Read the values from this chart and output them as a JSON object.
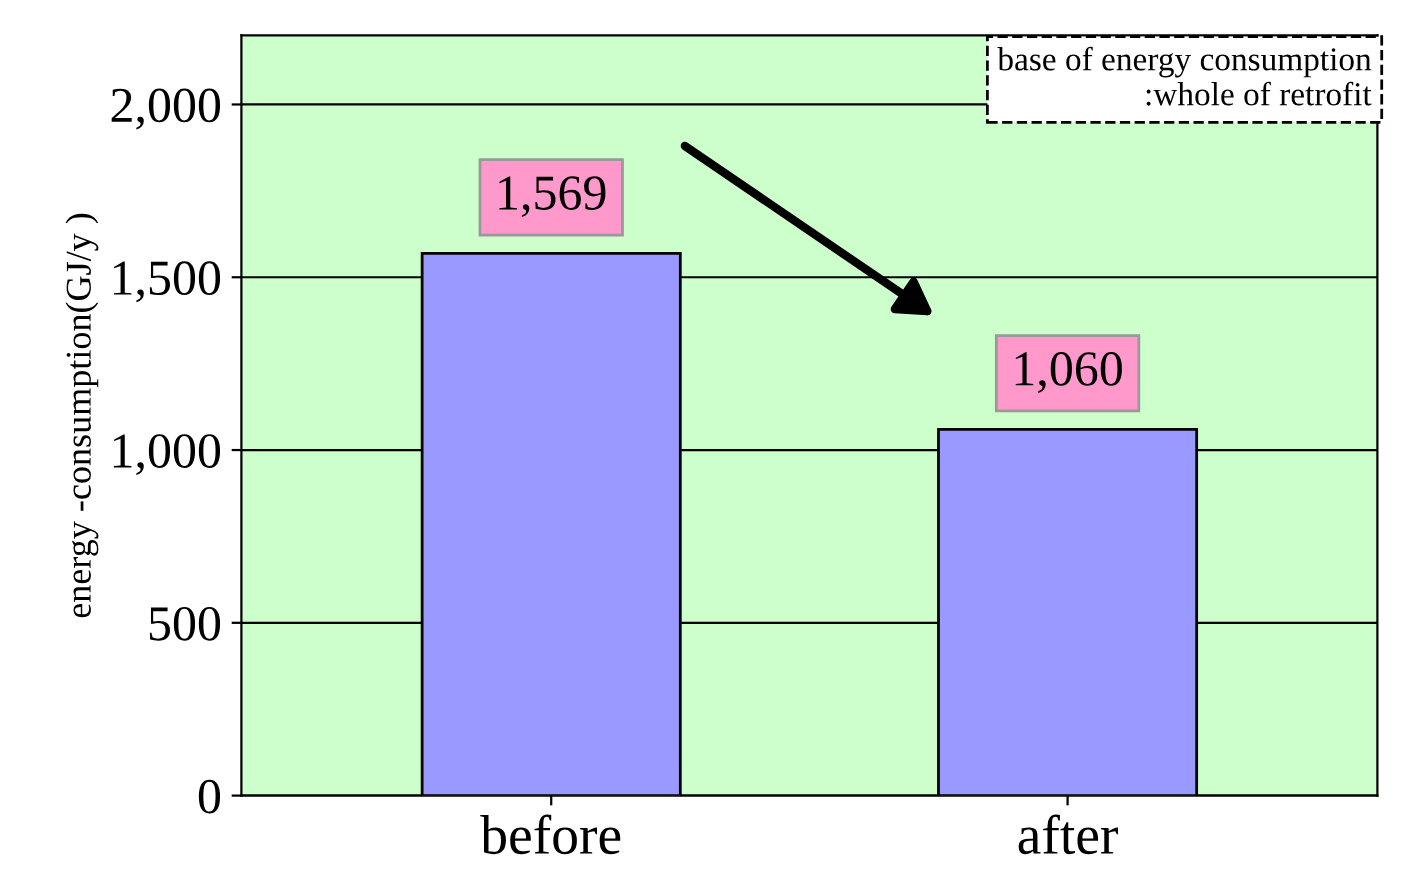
{
  "chart_data": {
    "type": "bar",
    "ylabel": "energy -consumption(GJ/y )",
    "categories": [
      "before",
      "after"
    ],
    "values": [
      1569,
      1060
    ],
    "color": "#9999ff",
    "ylim": [
      0,
      2200
    ],
    "yticks": [
      0,
      500,
      {
        "value": 1000,
        "label": "1,000"
      },
      {
        "value": 1500,
        "label": "1,500"
      },
      {
        "value": 2000,
        "label": "2,000"
      }
    ],
    "grid": "y",
    "value_labels": [
      "1,569",
      "1,060"
    ],
    "annotations": [
      "base of energy consumption\n:whole of retrofit"
    ]
  }
}
